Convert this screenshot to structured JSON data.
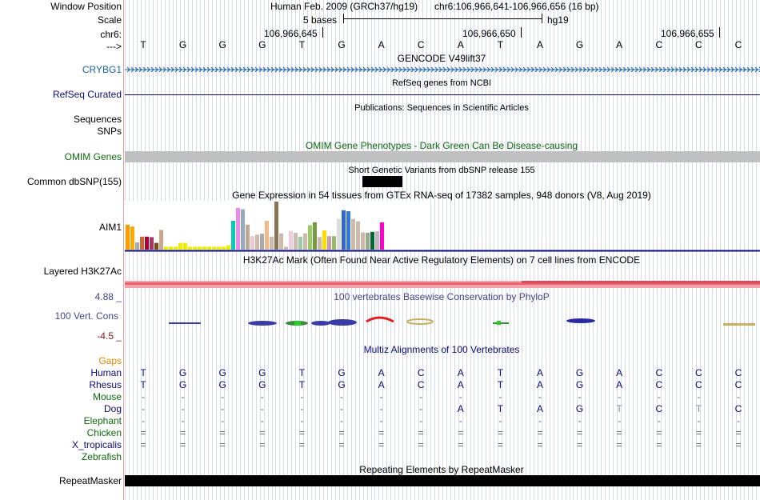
{
  "header": {
    "window_position_label": "Window Position",
    "scale_label": "Scale",
    "chrom_label": "chr6:",
    "arrow_label": "--->",
    "assembly": "Human Feb. 2009 (GRCh37/hg19)",
    "position": "chr6:106,966,641-106,966,656 (16 bp)",
    "scale_text": "5 bases",
    "db": "hg19",
    "ruler_positions": [
      "106,966,645",
      "106,966,650",
      "106,966,655"
    ]
  },
  "sequence": [
    "T",
    "G",
    "G",
    "G",
    "T",
    "G",
    "A",
    "C",
    "A",
    "T",
    "A",
    "G",
    "A",
    "C",
    "C",
    "C"
  ],
  "tracks": {
    "gencode": {
      "title": "GENCODE V49lift37",
      "label": "CRYBG1",
      "color": "#1a64a0"
    },
    "refseq": {
      "title": "RefSeq genes from NCBI",
      "label": "RefSeq Curated",
      "color": "#0c0c78"
    },
    "publications": {
      "title": "Publications: Sequences in Scientific Articles",
      "label1": "Sequences",
      "label2": "SNPs"
    },
    "omim": {
      "title": "OMIM Gene Phenotypes - Dark Green Can Be Disease-causing",
      "label": "OMIM Genes",
      "color": "#0d6c0d"
    },
    "dbsnp": {
      "title": "Short Genetic Variants from dbSNP release 155",
      "label": "Common dbSNP(155)"
    },
    "gtex": {
      "title": "Gene Expression in 54 tissues from GTEx RNA-seq of 17382 samples, 948 donors (V8, Aug 2019)",
      "label": "AIM1"
    },
    "h3k27ac": {
      "title": "H3K27Ac Mark (Often Found Near Active Regulatory Elements) on 7 cell lines from ENCODE",
      "label": "Layered H3K27Ac"
    },
    "phylop": {
      "title": "100 vertebrates Basewise Conservation by PhyloP",
      "label": "100 Vert. Cons",
      "max": "4.88 _",
      "min": "-4.5 _",
      "color": "#45458e"
    },
    "multiz": {
      "title": "Multiz Alignments of 100 Vertebrates",
      "gaps_label": "Gaps",
      "color": "#0c0c78"
    },
    "repeatmasker": {
      "title": "Repeating Elements by RepeatMasker",
      "label": "RepeatMasker"
    }
  },
  "alignments": [
    {
      "species": "Human",
      "color": "#0c0c78",
      "bases": [
        "T",
        "G",
        "G",
        "G",
        "T",
        "G",
        "A",
        "C",
        "A",
        "T",
        "A",
        "G",
        "A",
        "C",
        "C",
        "C"
      ]
    },
    {
      "species": "Rhesus",
      "color": "#0c0c78",
      "bases": [
        "T",
        "G",
        "G",
        "G",
        "T",
        "G",
        "A",
        "C",
        "A",
        "T",
        "A",
        "G",
        "A",
        "C",
        "C",
        "C"
      ]
    },
    {
      "species": "Mouse",
      "color": "#0d6c0d",
      "bases": [
        "-",
        "-",
        "-",
        "-",
        "-",
        "-",
        "-",
        "-",
        "-",
        "-",
        "-",
        "-",
        "-",
        "-",
        "-",
        "-"
      ]
    },
    {
      "species": "Dog",
      "color": "#0c0c78",
      "bases": [
        "-",
        "-",
        "-",
        "-",
        "-",
        "-",
        "-",
        "-",
        "A",
        "T",
        "A",
        "G",
        "T",
        "C",
        "T",
        "C"
      ]
    },
    {
      "species": "Elephant",
      "color": "#0d6c0d",
      "bases": [
        "-",
        "-",
        "-",
        "-",
        "-",
        "-",
        "-",
        "-",
        "-",
        "-",
        "-",
        "-",
        "-",
        "-",
        "-",
        "-"
      ]
    },
    {
      "species": "Chicken",
      "color": "#0d6c0d",
      "bases": [
        "=",
        "=",
        "=",
        "=",
        "=",
        "=",
        "=",
        "=",
        "=",
        "=",
        "=",
        "=",
        "=",
        "=",
        "=",
        "="
      ]
    },
    {
      "species": "X_tropicalis",
      "color": "#0c0c78",
      "bases": [
        "=",
        "=",
        "=",
        "=",
        "=",
        "=",
        "=",
        "=",
        "=",
        "=",
        "=",
        "=",
        "=",
        "=",
        "=",
        "="
      ]
    },
    {
      "species": "Zebrafish",
      "color": "#0d6c0d",
      "bases": [
        "",
        "",
        "",
        "",
        "",
        "",
        "",
        "",
        "",
        "",
        "",
        "",
        "",
        "",
        "",
        ""
      ]
    }
  ],
  "gtex_bars": [
    {
      "value": 0.52,
      "color": "#ff9900"
    },
    {
      "value": 0.48,
      "color": "#ffaa00"
    },
    {
      "value": 0.15,
      "color": "#aaaaaa"
    },
    {
      "value": 0.27,
      "color": "#cc6633"
    },
    {
      "value": 0.27,
      "color": "#aa0033"
    },
    {
      "value": 0.26,
      "color": "#aa3366"
    },
    {
      "value": 0.14,
      "color": "#8b4513"
    },
    {
      "value": 0.41,
      "color": "#c9a98a"
    },
    {
      "value": 0.06,
      "color": "#eeee00"
    },
    {
      "value": 0.06,
      "color": "#eeee00"
    },
    {
      "value": 0.06,
      "color": "#eeee00"
    },
    {
      "value": 0.14,
      "color": "#eeee00"
    },
    {
      "value": 0.14,
      "color": "#eeee00"
    },
    {
      "value": 0.06,
      "color": "#eeee00"
    },
    {
      "value": 0.06,
      "color": "#eeee00"
    },
    {
      "value": 0.06,
      "color": "#eeee00"
    },
    {
      "value": 0.06,
      "color": "#eeee00"
    },
    {
      "value": 0.06,
      "color": "#eeee00"
    },
    {
      "value": 0.06,
      "color": "#eeee00"
    },
    {
      "value": 0.06,
      "color": "#eeee00"
    },
    {
      "value": 0.06,
      "color": "#eeee00"
    },
    {
      "value": 0.09,
      "color": "#eeee00"
    },
    {
      "value": 0.6,
      "color": "#00ccbb"
    },
    {
      "value": 0.87,
      "color": "#ee88ee"
    },
    {
      "value": 0.84,
      "color": "#99aabb"
    },
    {
      "value": 0.52,
      "color": "#bbaa99"
    },
    {
      "value": 0.28,
      "color": "#eec8c8"
    },
    {
      "value": 0.31,
      "color": "#ccbbaa"
    },
    {
      "value": 0.33,
      "color": "#aaaaaa"
    },
    {
      "value": 0.6,
      "color": "#eebb88"
    },
    {
      "value": 0.27,
      "color": "#ccbbaa"
    },
    {
      "value": 1.0,
      "color": "#8b7355"
    },
    {
      "value": 0.34,
      "color": "#ccbbaa"
    },
    {
      "value": 0.06,
      "color": "#ccbbaa"
    },
    {
      "value": 0.39,
      "color": "#eeccdd"
    },
    {
      "value": 0.35,
      "color": "#ccbbaa"
    },
    {
      "value": 0.27,
      "color": "#99ccaa"
    },
    {
      "value": 0.34,
      "color": "#ccbbaa"
    },
    {
      "value": 0.51,
      "color": "#99cc66"
    },
    {
      "value": 0.57,
      "color": "#779944"
    },
    {
      "value": 0.26,
      "color": "#ccbbaa"
    },
    {
      "value": 0.4,
      "color": "#ffdd00"
    },
    {
      "value": 0.28,
      "color": "#cc99aa"
    },
    {
      "value": 0.28,
      "color": "#99bb66"
    },
    {
      "value": 0.64,
      "color": "#dddddd"
    },
    {
      "value": 0.82,
      "color": "#3366cc"
    },
    {
      "value": 0.8,
      "color": "#3377dd"
    },
    {
      "value": 0.64,
      "color": "#ccbbaa"
    },
    {
      "value": 0.59,
      "color": "#ccbbaa"
    },
    {
      "value": 0.36,
      "color": "#ccbbaa"
    },
    {
      "value": 0.35,
      "color": "#99aa88"
    },
    {
      "value": 0.37,
      "color": "#006633"
    },
    {
      "value": 0.38,
      "color": "#bbbbbb"
    },
    {
      "value": 0.57,
      "color": "#ff00cc"
    }
  ]
}
